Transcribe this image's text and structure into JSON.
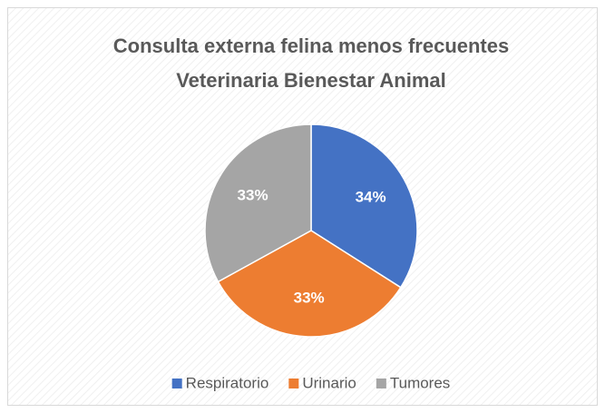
{
  "chart_data": {
    "type": "pie",
    "title": [
      "Consulta externa felina menos frecuentes",
      "Veterinaria Bienestar Animal"
    ],
    "categories": [
      "Respiratorio",
      "Urinario",
      "Tumores"
    ],
    "values": [
      34,
      33,
      33
    ],
    "value_labels": [
      "34%",
      "33%",
      "33%"
    ],
    "colors": [
      "#4472c4",
      "#ed7d31",
      "#a5a5a5"
    ],
    "legend": "bottom"
  }
}
